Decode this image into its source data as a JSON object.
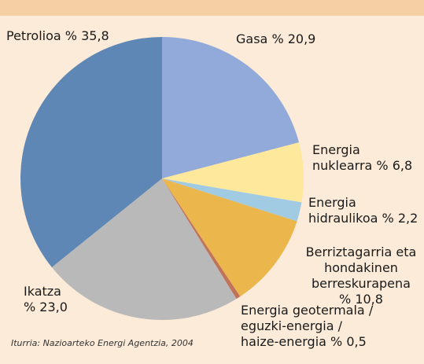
{
  "chart_data": {
    "type": "pie",
    "categories": [
      "Gasa",
      "Energia nuklearra",
      "Energia hidraulikoa",
      "Berriztagarria eta hondakinen berreskurapena",
      "Energia geotermala / eguzki-energia / haize-energia",
      "Ikatza",
      "Petrolioa"
    ],
    "values": [
      20.9,
      6.8,
      2.2,
      10.8,
      0.5,
      23.0,
      35.8
    ],
    "value_labels": [
      "% 20,9",
      "% 6,8",
      "% 2,2",
      "% 10,8",
      "% 0,5",
      "% 23,0",
      "% 35,8"
    ],
    "colors": [
      "#92aad9",
      "#fde89c",
      "#a0cbe2",
      "#ebb74c",
      "#c0735a",
      "#b9b9b9",
      "#5f87b5"
    ],
    "source": "Iturria: Nazioarteko Energi Agentzia, 2004"
  }
}
